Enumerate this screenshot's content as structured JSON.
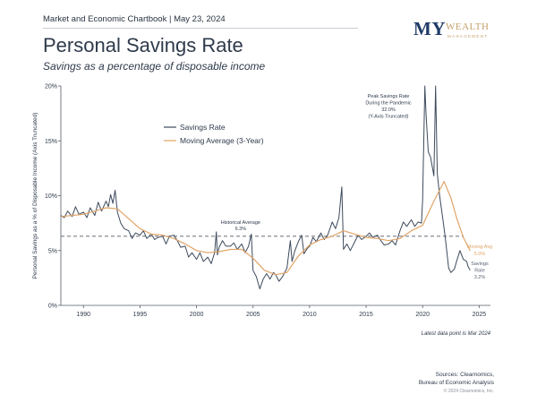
{
  "header": {
    "chartbook": "Market and Economic Chartbook | May 23, 2024",
    "logo_my": "MY",
    "logo_wealth": "WEALTH",
    "logo_management": "MANAGEMENT"
  },
  "footer": {
    "latest": "Latest data point is Mar 2024",
    "sources_line1": "Sources: Clearnomics,",
    "sources_line2": "Bureau of Economic Analysis",
    "copyright": "© 2024 Clearnomics, Inc."
  },
  "colors": {
    "savings": "#3d4a5c",
    "moving_avg": "#e0a468",
    "axis": "#555b66",
    "dashed": "#555b66"
  },
  "chart_data": {
    "type": "line",
    "title": "Personal Savings Rate",
    "subtitle": "Savings as a percentage of disposable income",
    "ylabel": "Personal Savings as a % of Disposable Income (Axis Truncated)",
    "xlim": [
      1988,
      2026
    ],
    "ylim": [
      0,
      20
    ],
    "x_ticks": [
      1990,
      1995,
      2000,
      2005,
      2010,
      2015,
      2020,
      2025
    ],
    "y_ticks": [
      {
        "value": 0,
        "label": "0%"
      },
      {
        "value": 5,
        "label": "5%"
      },
      {
        "value": 10,
        "label": "10%"
      },
      {
        "value": 15,
        "label": "15%"
      },
      {
        "value": 20,
        "label": "20%"
      }
    ],
    "legend": {
      "position": "top-left",
      "entries": [
        "Savings Rate",
        "Moving Average (3-Year)"
      ]
    },
    "historical_average": {
      "value": 6.3,
      "label_line1": "Historical Average",
      "label_line2": "6.3%"
    },
    "peak_annotation": {
      "line1": "Peak Savings Rate",
      "line2": "During the Pandemic",
      "line3": "32.0%",
      "line4": "(Y-Axis Truncated)"
    },
    "end_labels": {
      "ma_line1": "Moving Avg",
      "ma_line2": "5.0%",
      "sr_line1": "Savings",
      "sr_line2": "Rate",
      "sr_line3": "3.2%"
    },
    "series": [
      {
        "name": "Savings Rate",
        "points": [
          [
            1988.0,
            8.2
          ],
          [
            1988.3,
            8.0
          ],
          [
            1988.6,
            8.6
          ],
          [
            1989.0,
            8.1
          ],
          [
            1989.3,
            9.0
          ],
          [
            1989.6,
            8.3
          ],
          [
            1990.0,
            8.5
          ],
          [
            1990.3,
            8.0
          ],
          [
            1990.6,
            8.9
          ],
          [
            1991.0,
            8.2
          ],
          [
            1991.3,
            9.4
          ],
          [
            1991.6,
            8.6
          ],
          [
            1992.0,
            9.5
          ],
          [
            1992.2,
            9.0
          ],
          [
            1992.4,
            10.1
          ],
          [
            1992.6,
            9.3
          ],
          [
            1992.8,
            10.5
          ],
          [
            1993.0,
            8.5
          ],
          [
            1993.3,
            7.5
          ],
          [
            1993.6,
            7.0
          ],
          [
            1994.0,
            6.8
          ],
          [
            1994.3,
            6.1
          ],
          [
            1994.6,
            6.6
          ],
          [
            1995.0,
            6.4
          ],
          [
            1995.3,
            6.8
          ],
          [
            1995.6,
            6.1
          ],
          [
            1996.0,
            6.5
          ],
          [
            1996.3,
            6.0
          ],
          [
            1996.6,
            6.2
          ],
          [
            1997.0,
            6.3
          ],
          [
            1997.3,
            5.6
          ],
          [
            1997.6,
            6.3
          ],
          [
            1998.0,
            6.4
          ],
          [
            1998.3,
            5.9
          ],
          [
            1998.6,
            5.3
          ],
          [
            1999.0,
            5.4
          ],
          [
            1999.3,
            4.4
          ],
          [
            1999.6,
            4.8
          ],
          [
            2000.0,
            4.2
          ],
          [
            2000.3,
            4.8
          ],
          [
            2000.6,
            4.0
          ],
          [
            2001.0,
            4.4
          ],
          [
            2001.3,
            3.8
          ],
          [
            2001.6,
            4.8
          ],
          [
            2001.75,
            6.7
          ],
          [
            2001.85,
            4.6
          ],
          [
            2002.0,
            5.3
          ],
          [
            2002.3,
            5.9
          ],
          [
            2002.6,
            5.4
          ],
          [
            2003.0,
            5.4
          ],
          [
            2003.3,
            5.7
          ],
          [
            2003.6,
            5.1
          ],
          [
            2004.0,
            5.6
          ],
          [
            2004.3,
            4.8
          ],
          [
            2004.6,
            5.4
          ],
          [
            2004.85,
            6.5
          ],
          [
            2005.0,
            3.2
          ],
          [
            2005.3,
            2.6
          ],
          [
            2005.6,
            1.5
          ],
          [
            2005.9,
            2.4
          ],
          [
            2006.2,
            2.9
          ],
          [
            2006.5,
            2.4
          ],
          [
            2006.8,
            3.0
          ],
          [
            2007.0,
            2.8
          ],
          [
            2007.3,
            2.2
          ],
          [
            2007.6,
            2.6
          ],
          [
            2008.0,
            3.4
          ],
          [
            2008.3,
            5.9
          ],
          [
            2008.45,
            4.0
          ],
          [
            2008.7,
            5.0
          ],
          [
            2009.0,
            5.8
          ],
          [
            2009.3,
            6.4
          ],
          [
            2009.5,
            4.7
          ],
          [
            2009.8,
            5.2
          ],
          [
            2010.0,
            5.4
          ],
          [
            2010.3,
            6.2
          ],
          [
            2010.6,
            5.8
          ],
          [
            2011.0,
            6.6
          ],
          [
            2011.3,
            6.0
          ],
          [
            2011.6,
            6.4
          ],
          [
            2012.0,
            7.6
          ],
          [
            2012.3,
            7.0
          ],
          [
            2012.6,
            8.0
          ],
          [
            2012.85,
            10.8
          ],
          [
            2013.0,
            5.1
          ],
          [
            2013.3,
            5.6
          ],
          [
            2013.6,
            5.0
          ],
          [
            2014.0,
            5.8
          ],
          [
            2014.3,
            6.4
          ],
          [
            2014.6,
            6.0
          ],
          [
            2015.0,
            6.3
          ],
          [
            2015.3,
            6.6
          ],
          [
            2015.6,
            6.2
          ],
          [
            2016.0,
            6.4
          ],
          [
            2016.3,
            5.9
          ],
          [
            2016.6,
            5.5
          ],
          [
            2017.0,
            5.6
          ],
          [
            2017.3,
            5.9
          ],
          [
            2017.6,
            5.5
          ],
          [
            2018.0,
            6.8
          ],
          [
            2018.3,
            7.6
          ],
          [
            2018.6,
            7.2
          ],
          [
            2019.0,
            7.8
          ],
          [
            2019.3,
            7.2
          ],
          [
            2019.6,
            7.6
          ],
          [
            2019.9,
            7.5
          ],
          [
            2020.0,
            9.6
          ],
          [
            2020.2,
            20.0
          ],
          [
            2020.3,
            17.5
          ],
          [
            2020.5,
            14.0
          ],
          [
            2020.7,
            13.5
          ],
          [
            2021.0,
            11.8
          ],
          [
            2021.15,
            20.0
          ],
          [
            2021.3,
            12.0
          ],
          [
            2021.5,
            10.0
          ],
          [
            2021.8,
            7.8
          ],
          [
            2022.0,
            6.2
          ],
          [
            2022.3,
            3.4
          ],
          [
            2022.5,
            3.0
          ],
          [
            2022.8,
            3.3
          ],
          [
            2023.0,
            4.0
          ],
          [
            2023.3,
            5.0
          ],
          [
            2023.6,
            4.2
          ],
          [
            2023.9,
            4.0
          ],
          [
            2024.0,
            3.6
          ],
          [
            2024.2,
            3.2
          ]
        ]
      },
      {
        "name": "Moving Average (3-Year)",
        "points": [
          [
            1988.0,
            8.1
          ],
          [
            1989.0,
            8.2
          ],
          [
            1990.0,
            8.3
          ],
          [
            1991.0,
            8.6
          ],
          [
            1992.0,
            8.9
          ],
          [
            1993.0,
            8.8
          ],
          [
            1994.0,
            7.9
          ],
          [
            1995.0,
            7.0
          ],
          [
            1996.0,
            6.5
          ],
          [
            1997.0,
            6.4
          ],
          [
            1998.0,
            6.1
          ],
          [
            1999.0,
            5.6
          ],
          [
            2000.0,
            5.0
          ],
          [
            2001.0,
            4.8
          ],
          [
            2002.0,
            4.9
          ],
          [
            2003.0,
            5.1
          ],
          [
            2004.0,
            5.1
          ],
          [
            2005.0,
            4.3
          ],
          [
            2006.0,
            3.2
          ],
          [
            2007.0,
            2.8
          ],
          [
            2008.0,
            3.0
          ],
          [
            2009.0,
            4.5
          ],
          [
            2010.0,
            5.5
          ],
          [
            2011.0,
            6.0
          ],
          [
            2012.0,
            6.3
          ],
          [
            2013.0,
            6.8
          ],
          [
            2014.0,
            6.5
          ],
          [
            2015.0,
            6.2
          ],
          [
            2016.0,
            6.1
          ],
          [
            2017.0,
            5.9
          ],
          [
            2018.0,
            6.1
          ],
          [
            2019.0,
            6.8
          ],
          [
            2020.0,
            7.3
          ],
          [
            2021.0,
            9.5
          ],
          [
            2021.9,
            11.3
          ],
          [
            2022.5,
            9.8
          ],
          [
            2023.0,
            8.0
          ],
          [
            2023.6,
            6.2
          ],
          [
            2024.2,
            5.0
          ]
        ]
      }
    ]
  }
}
